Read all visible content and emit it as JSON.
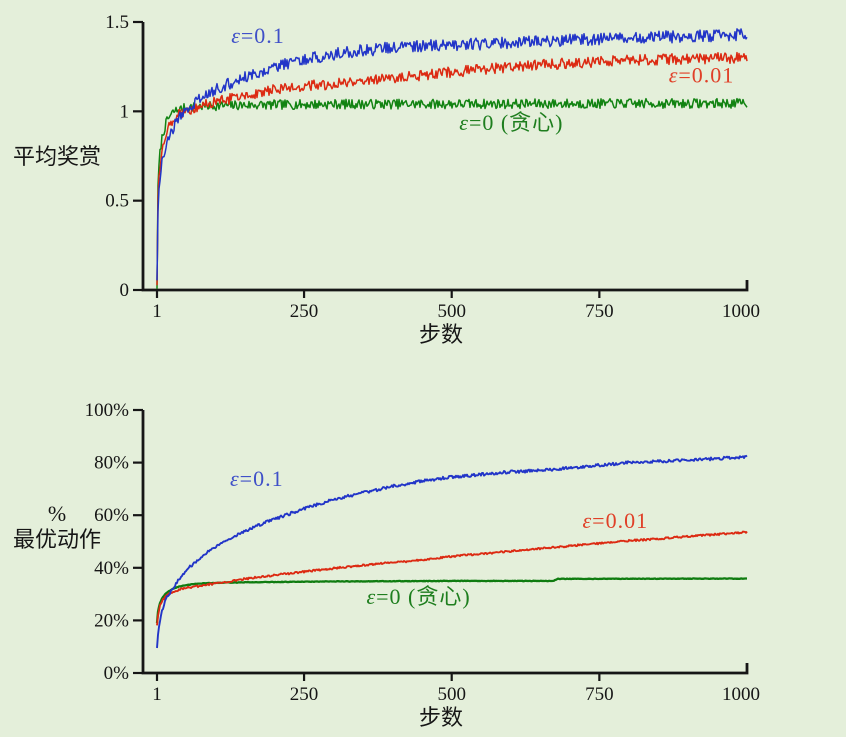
{
  "figure": {
    "background": "#e4efda",
    "axis_color": "#161616"
  },
  "chart_data": [
    {
      "id": "average-reward",
      "type": "line",
      "xlabel": "步数",
      "ylabel_lines": [
        "平均奖赏"
      ],
      "xlim": [
        1,
        1000
      ],
      "ylim": [
        0,
        1.5
      ],
      "grid": false,
      "legend": "inline-annotations",
      "xticks": [
        {
          "value": 1,
          "label": "1"
        },
        {
          "value": 250,
          "label": "250"
        },
        {
          "value": 500,
          "label": "500"
        },
        {
          "value": 750,
          "label": "750"
        },
        {
          "value": 1000,
          "label": "1000",
          "cap": "up"
        }
      ],
      "yticks": [
        {
          "value": 0,
          "label": "0"
        },
        {
          "value": 0.5,
          "label": "0.5"
        },
        {
          "value": 1,
          "label": "1"
        },
        {
          "value": 1.5,
          "label": "1.5"
        }
      ],
      "series": [
        {
          "name": "ε=0 (贪心)",
          "color": "#128312",
          "noise": 0.027,
          "stroke_width": 1.5,
          "points": [
            [
              1,
              0.02
            ],
            [
              2,
              0.5
            ],
            [
              4,
              0.68
            ],
            [
              7,
              0.8
            ],
            [
              10,
              0.86
            ],
            [
              15,
              0.92
            ],
            [
              20,
              0.96
            ],
            [
              30,
              1.0
            ],
            [
              50,
              1.02
            ],
            [
              80,
              1.03
            ],
            [
              150,
              1.035
            ],
            [
              300,
              1.04
            ],
            [
              600,
              1.042
            ],
            [
              1000,
              1.045
            ]
          ]
        },
        {
          "name": "ε=0.01",
          "color": "#dc2a12",
          "noise": 0.03,
          "stroke_width": 1.5,
          "points": [
            [
              1,
              0.02
            ],
            [
              2,
              0.45
            ],
            [
              4,
              0.62
            ],
            [
              7,
              0.73
            ],
            [
              10,
              0.8
            ],
            [
              15,
              0.87
            ],
            [
              20,
              0.91
            ],
            [
              30,
              0.96
            ],
            [
              40,
              0.99
            ],
            [
              55,
              1.01
            ],
            [
              70,
              1.03
            ],
            [
              100,
              1.05
            ],
            [
              150,
              1.09
            ],
            [
              200,
              1.12
            ],
            [
              250,
              1.14
            ],
            [
              300,
              1.155
            ],
            [
              350,
              1.17
            ],
            [
              400,
              1.185
            ],
            [
              450,
              1.2
            ],
            [
              500,
              1.22
            ],
            [
              600,
              1.25
            ],
            [
              700,
              1.27
            ],
            [
              800,
              1.285
            ],
            [
              900,
              1.295
            ],
            [
              1000,
              1.3
            ]
          ]
        },
        {
          "name": "ε=0.1",
          "color": "#2235c8",
          "noise": 0.034,
          "stroke_width": 1.5,
          "points": [
            [
              1,
              0.02
            ],
            [
              2,
              0.42
            ],
            [
              4,
              0.55
            ],
            [
              7,
              0.66
            ],
            [
              10,
              0.72
            ],
            [
              15,
              0.8
            ],
            [
              20,
              0.85
            ],
            [
              30,
              0.92
            ],
            [
              40,
              0.97
            ],
            [
              55,
              1.02
            ],
            [
              70,
              1.06
            ],
            [
              90,
              1.1
            ],
            [
              110,
              1.14
            ],
            [
              140,
              1.18
            ],
            [
              170,
              1.22
            ],
            [
              200,
              1.25
            ],
            [
              250,
              1.29
            ],
            [
              300,
              1.32
            ],
            [
              350,
              1.34
            ],
            [
              400,
              1.355
            ],
            [
              450,
              1.365
            ],
            [
              500,
              1.37
            ],
            [
              600,
              1.385
            ],
            [
              700,
              1.4
            ],
            [
              800,
              1.41
            ],
            [
              900,
              1.42
            ],
            [
              1000,
              1.43
            ]
          ]
        }
      ],
      "annotations": [
        {
          "text": "ε=0.1",
          "step": 172,
          "value": 1.382,
          "color": "#3f50c8"
        },
        {
          "text": "ε=0.01",
          "step": 923,
          "value": 1.16,
          "color": "#e04028"
        },
        {
          "text": "ε=0 (贪心)",
          "step": 601,
          "value": 0.895,
          "color": "#1e7e1e"
        }
      ]
    },
    {
      "id": "optimal-action-percent",
      "type": "line",
      "xlabel": "步数",
      "ylabel_lines": [
        "%",
        "最优动作"
      ],
      "xlim": [
        1,
        1000
      ],
      "ylim": [
        0,
        100
      ],
      "grid": false,
      "legend": "inline-annotations",
      "xticks": [
        {
          "value": 1,
          "label": "1"
        },
        {
          "value": 250,
          "label": "250"
        },
        {
          "value": 500,
          "label": "500"
        },
        {
          "value": 750,
          "label": "750"
        },
        {
          "value": 1000,
          "label": "1000",
          "cap": "up"
        }
      ],
      "yticks": [
        {
          "value": 0,
          "label": "0%"
        },
        {
          "value": 20,
          "label": "20%"
        },
        {
          "value": 40,
          "label": "40%"
        },
        {
          "value": 60,
          "label": "60%"
        },
        {
          "value": 80,
          "label": "80%"
        },
        {
          "value": 100,
          "label": "100%"
        }
      ],
      "series": [
        {
          "name": "ε=0 (贪心)",
          "color": "#0f7c10",
          "noise": 0.1,
          "stroke_width": 2.3,
          "points": [
            [
              1,
              19
            ],
            [
              3,
              24
            ],
            [
              6,
              26.5
            ],
            [
              10,
              28.5
            ],
            [
              15,
              30
            ],
            [
              20,
              31
            ],
            [
              30,
              32.2
            ],
            [
              40,
              33
            ],
            [
              55,
              33.6
            ],
            [
              80,
              34.1
            ],
            [
              120,
              34.4
            ],
            [
              200,
              34.6
            ],
            [
              300,
              34.8
            ],
            [
              400,
              34.9
            ],
            [
              500,
              35
            ],
            [
              672,
              35
            ],
            [
              680,
              35.8
            ],
            [
              1000,
              35.9
            ]
          ]
        },
        {
          "name": "ε=0.01",
          "color": "#dc2a12",
          "noise": 0.35,
          "stroke_width": 1.9,
          "points": [
            [
              1,
              18
            ],
            [
              3,
              22.5
            ],
            [
              6,
              25.5
            ],
            [
              10,
              27.5
            ],
            [
              15,
              29
            ],
            [
              20,
              30
            ],
            [
              30,
              31
            ],
            [
              40,
              31.8
            ],
            [
              55,
              32.5
            ],
            [
              70,
              33
            ],
            [
              100,
              34
            ],
            [
              150,
              35.8
            ],
            [
              200,
              37.2
            ],
            [
              250,
              38.5
            ],
            [
              300,
              39.8
            ],
            [
              350,
              41
            ],
            [
              400,
              42
            ],
            [
              450,
              43
            ],
            [
              500,
              44.3
            ],
            [
              550,
              45.3
            ],
            [
              600,
              46.3
            ],
            [
              650,
              47.3
            ],
            [
              700,
              48.3
            ],
            [
              750,
              49.3
            ],
            [
              800,
              50.3
            ],
            [
              850,
              51
            ],
            [
              900,
              52
            ],
            [
              950,
              52.7
            ],
            [
              1000,
              53.6
            ]
          ]
        },
        {
          "name": "ε=0.1",
          "color": "#2235c8",
          "noise": 0.55,
          "stroke_width": 1.9,
          "points": [
            [
              1,
              10
            ],
            [
              3,
              16
            ],
            [
              6,
              20
            ],
            [
              10,
              24
            ],
            [
              15,
              27.5
            ],
            [
              20,
              29.5
            ],
            [
              30,
              33
            ],
            [
              40,
              36
            ],
            [
              55,
              40
            ],
            [
              70,
              43
            ],
            [
              90,
              46.5
            ],
            [
              110,
              49.5
            ],
            [
              140,
              53
            ],
            [
              170,
              56
            ],
            [
              200,
              58.5
            ],
            [
              250,
              62.5
            ],
            [
              300,
              66
            ],
            [
              350,
              68.5
            ],
            [
              400,
              71
            ],
            [
              450,
              73
            ],
            [
              500,
              74.5
            ],
            [
              550,
              75.5
            ],
            [
              600,
              76.5
            ],
            [
              650,
              77
            ],
            [
              700,
              78
            ],
            [
              750,
              79
            ],
            [
              800,
              80
            ],
            [
              850,
              80.5
            ],
            [
              900,
              81
            ],
            [
              950,
              81.5
            ],
            [
              1000,
              82.3
            ]
          ]
        }
      ],
      "annotations": [
        {
          "text": "ε=0.1",
          "step": 170,
          "value": 71.1,
          "color": "#3f50c8"
        },
        {
          "text": "ε=0.01",
          "step": 777,
          "value": 55.1,
          "color": "#e04028"
        },
        {
          "text": "ε=0 (贪心)",
          "step": 444,
          "value": 26.2,
          "color": "#1e7e1e"
        }
      ]
    }
  ]
}
